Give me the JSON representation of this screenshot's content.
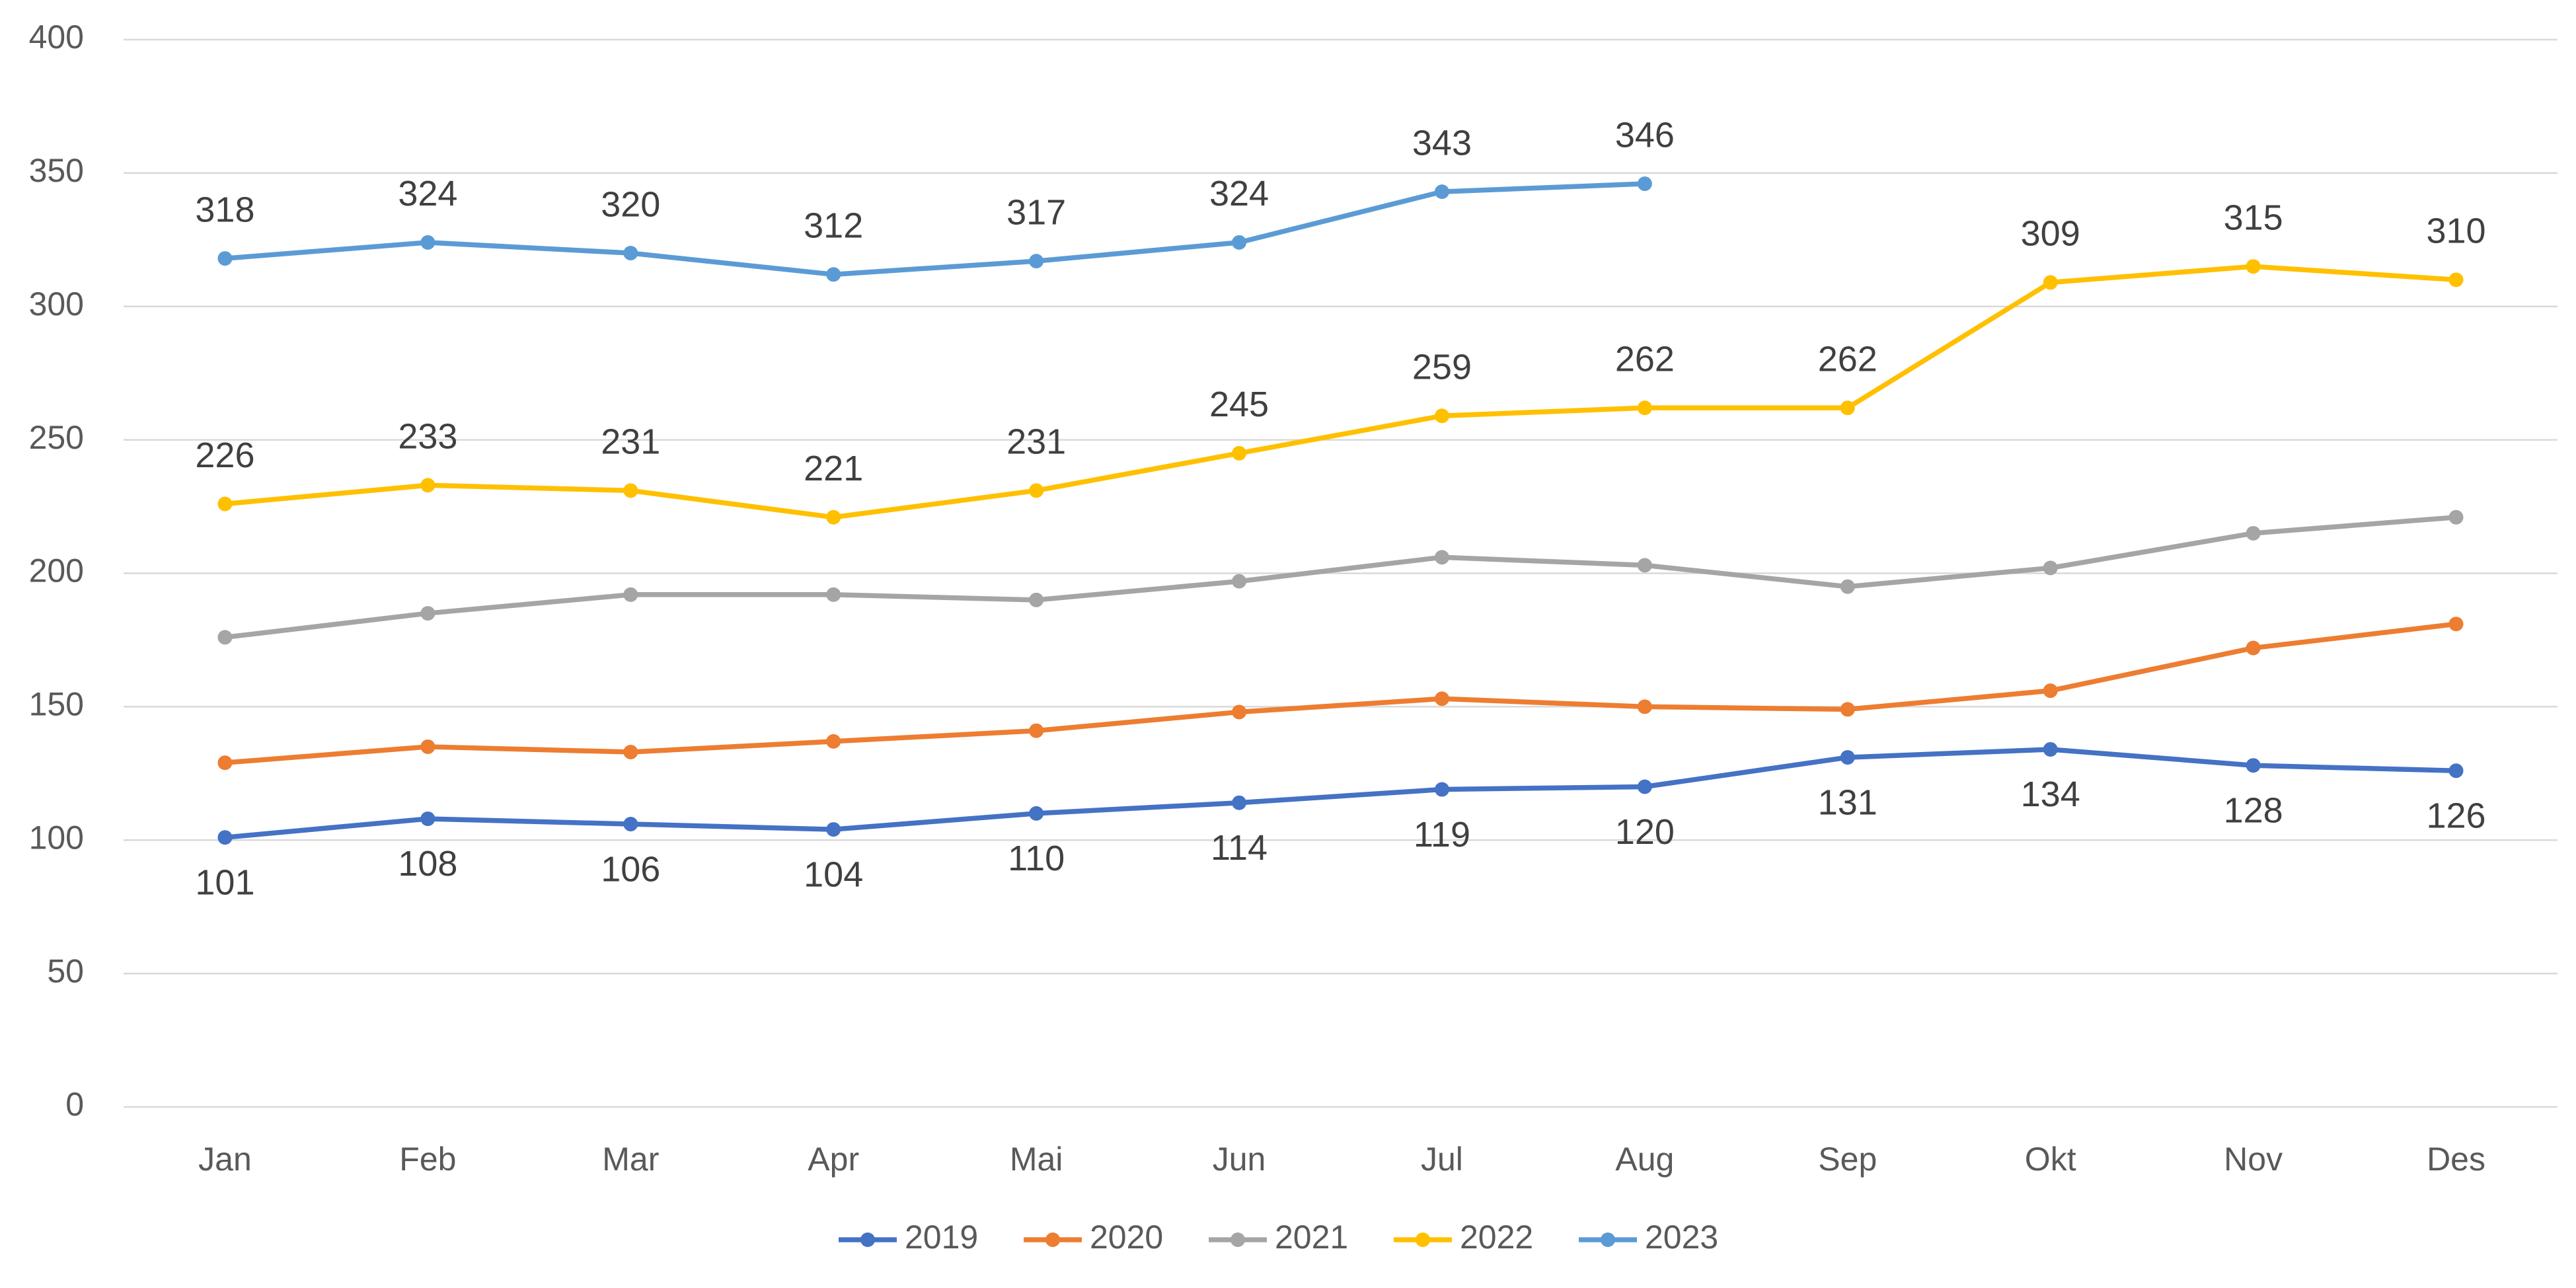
{
  "chart_data": {
    "type": "line",
    "categories": [
      "Jan",
      "Feb",
      "Mar",
      "Apr",
      "Mai",
      "Jun",
      "Jul",
      "Aug",
      "Sep",
      "Okt",
      "Nov",
      "Des"
    ],
    "series": [
      {
        "name": "2019",
        "color": "#4472c4",
        "label_position": "below",
        "values": [
          101,
          108,
          106,
          104,
          110,
          114,
          119,
          120,
          131,
          134,
          128,
          126
        ]
      },
      {
        "name": "2020",
        "color": "#ed7d31",
        "values": [
          129,
          135,
          133,
          137,
          141,
          148,
          153,
          150,
          149,
          156,
          172,
          181
        ]
      },
      {
        "name": "2021",
        "color": "#a5a5a5",
        "values": [
          176,
          185,
          192,
          192,
          190,
          197,
          206,
          203,
          195,
          202,
          215,
          221
        ]
      },
      {
        "name": "2022",
        "color": "#ffc000",
        "label_position": "above",
        "values": [
          226,
          233,
          231,
          221,
          231,
          245,
          259,
          262,
          262,
          309,
          315,
          310
        ]
      },
      {
        "name": "2023",
        "color": "#5b9bd5",
        "label_position": "above",
        "values": [
          318,
          324,
          320,
          312,
          317,
          324,
          343,
          346,
          null,
          null,
          null,
          null
        ]
      }
    ],
    "ylim": [
      0,
      400
    ],
    "yticks": [
      0,
      50,
      100,
      150,
      200,
      250,
      300,
      350,
      400
    ],
    "grid": true,
    "legend": "bottom"
  }
}
